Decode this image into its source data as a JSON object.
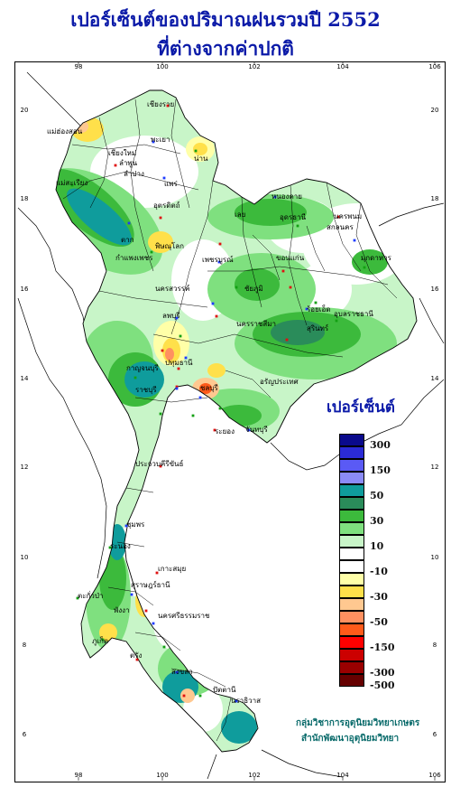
{
  "title_line1": "เปอร์เซ็นต์ของปริมาณฝนรวมปี 2552",
  "title_line2": "ที่ต่างจากค่าปกติ",
  "legend": {
    "title": "เปอร์เซ็นต์",
    "classes": [
      {
        "color": "#0a0a8c",
        "label": "300"
      },
      {
        "color": "#2b2bd6",
        "label": ""
      },
      {
        "color": "#5a5af5",
        "label": "150"
      },
      {
        "color": "#8b8bf7",
        "label": ""
      },
      {
        "color": "#0f9c9c",
        "label": "50"
      },
      {
        "color": "#2a8c5a",
        "label": ""
      },
      {
        "color": "#3cba3c",
        "label": "30"
      },
      {
        "color": "#7fe07f",
        "label": ""
      },
      {
        "color": "#c8f5c8",
        "label": "10"
      },
      {
        "color": "#ffffff",
        "label": ""
      },
      {
        "color": "#ffffff",
        "label": "-10"
      },
      {
        "color": "#ffffa8",
        "label": ""
      },
      {
        "color": "#ffe04a",
        "label": "-30"
      },
      {
        "color": "#ffc890",
        "label": ""
      },
      {
        "color": "#ff9060",
        "label": "-50"
      },
      {
        "color": "#ff5a1a",
        "label": ""
      },
      {
        "color": "#ff0000",
        "label": "-150"
      },
      {
        "color": "#cc0000",
        "label": ""
      },
      {
        "color": "#990000",
        "label": "-300"
      },
      {
        "color": "#660000",
        "label": "-500"
      }
    ]
  },
  "axes": {
    "x_ticks": [
      "98",
      "100",
      "102",
      "104",
      "106"
    ],
    "y_ticks": [
      "20",
      "18",
      "16",
      "14",
      "12",
      "10",
      "8",
      "6"
    ]
  },
  "cities": [
    {
      "name": "เชียงราย"
    },
    {
      "name": "แม่ฮ่องสอน"
    },
    {
      "name": "พะเยา"
    },
    {
      "name": "เชียงใหม่"
    },
    {
      "name": "น่าน"
    },
    {
      "name": "ลำพูน"
    },
    {
      "name": "ลำปาง"
    },
    {
      "name": "แพร่"
    },
    {
      "name": "แม่สะเรียง"
    },
    {
      "name": "อุตรดิตถ์"
    },
    {
      "name": "ตาก"
    },
    {
      "name": "พิษณุโลก"
    },
    {
      "name": "กำแพงเพชร"
    },
    {
      "name": "เพชรบูรณ์"
    },
    {
      "name": "หนองคาย"
    },
    {
      "name": "อุดรธานี"
    },
    {
      "name": "นครพนม"
    },
    {
      "name": "สกลนคร"
    },
    {
      "name": "มุกดาหาร"
    },
    {
      "name": "เลย"
    },
    {
      "name": "ขอนแก่น"
    },
    {
      "name": "นครสวรรค์"
    },
    {
      "name": "ชัยภูมิ"
    },
    {
      "name": "ร้อยเอ็ด"
    },
    {
      "name": "อุบลราชธานี"
    },
    {
      "name": "ลพบุรี"
    },
    {
      "name": "สุรินทร์"
    },
    {
      "name": "นครราชสีมา"
    },
    {
      "name": "กาญจนบุรี"
    },
    {
      "name": "ปทุมธานี"
    },
    {
      "name": "อรัญประเทศ"
    },
    {
      "name": "ราชบุรี"
    },
    {
      "name": "ชลบุรี"
    },
    {
      "name": "ระยอง"
    },
    {
      "name": "จันทบุรี"
    },
    {
      "name": "ประจวบคีรีขันธ์"
    },
    {
      "name": "ชุมพร"
    },
    {
      "name": "ระนอง"
    },
    {
      "name": "เกาะสมุย"
    },
    {
      "name": "สุราษฎร์ธานี"
    },
    {
      "name": "ตะกั่วป่า"
    },
    {
      "name": "พังงา"
    },
    {
      "name": "นครศรีธรรมราช"
    },
    {
      "name": "ภูเก็ต"
    },
    {
      "name": "ตรัง"
    },
    {
      "name": "สงขลา"
    },
    {
      "name": "นราธิวาส"
    },
    {
      "name": "ปัตตานี"
    }
  ],
  "credit_line1": "กลุ่มวิชาการอุตุนิยมวิทยาเกษตร",
  "credit_line2": "สำนักพัฒนาอุตุนิยมวิทยา"
}
